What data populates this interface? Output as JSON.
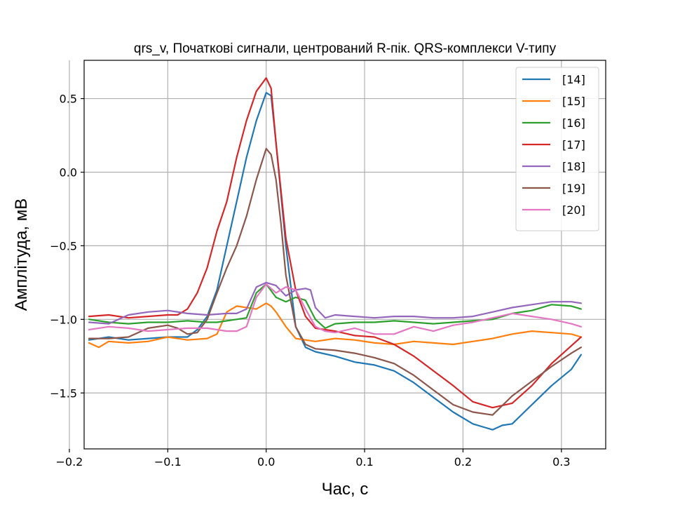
{
  "chart_data": {
    "type": "line",
    "title": "qrs_v, Початкові сигнали, центрований R-пік. QRS-комплекси V-типу",
    "xlabel": "Час, с",
    "ylabel": "Амплітуда, мВ",
    "xlim": [
      -0.185,
      0.345
    ],
    "ylim": [
      -1.88,
      0.76
    ],
    "xticks": [
      -0.2,
      -0.1,
      0.0,
      0.1,
      0.2,
      0.3
    ],
    "xtick_labels": [
      "−0.2",
      "−0.1",
      "0.0",
      "0.1",
      "0.2",
      "0.3"
    ],
    "yticks": [
      0.5,
      0.0,
      -0.5,
      -1.0,
      -1.5
    ],
    "ytick_labels": [
      "0.5",
      "0.0",
      "−0.5",
      "−1.0",
      "−1.5"
    ],
    "grid": true,
    "legend_position": "top-right",
    "series": [
      {
        "name": "[14]",
        "color": "#1f77b4",
        "x": [
          -0.18,
          -0.16,
          -0.14,
          -0.12,
          -0.1,
          -0.08,
          -0.07,
          -0.06,
          -0.05,
          -0.04,
          -0.03,
          -0.02,
          -0.01,
          0.0,
          0.005,
          0.01,
          0.02,
          0.03,
          0.04,
          0.05,
          0.07,
          0.09,
          0.11,
          0.13,
          0.15,
          0.17,
          0.19,
          0.21,
          0.22,
          0.23,
          0.24,
          0.25,
          0.27,
          0.29,
          0.31,
          0.32
        ],
        "y": [
          -1.14,
          -1.12,
          -1.14,
          -1.13,
          -1.12,
          -1.12,
          -1.07,
          -0.98,
          -0.8,
          -0.5,
          -0.2,
          0.1,
          0.35,
          0.54,
          0.52,
          0.2,
          -0.5,
          -1.05,
          -1.19,
          -1.22,
          -1.25,
          -1.29,
          -1.31,
          -1.35,
          -1.43,
          -1.53,
          -1.63,
          -1.71,
          -1.73,
          -1.75,
          -1.72,
          -1.71,
          -1.58,
          -1.45,
          -1.34,
          -1.24
        ]
      },
      {
        "name": "[15]",
        "color": "#ff7f0e",
        "x": [
          -0.18,
          -0.17,
          -0.16,
          -0.14,
          -0.12,
          -0.1,
          -0.08,
          -0.06,
          -0.05,
          -0.04,
          -0.03,
          -0.02,
          -0.01,
          0.0,
          0.005,
          0.01,
          0.02,
          0.03,
          0.05,
          0.07,
          0.09,
          0.11,
          0.13,
          0.15,
          0.17,
          0.19,
          0.21,
          0.23,
          0.25,
          0.27,
          0.29,
          0.31,
          0.32
        ],
        "y": [
          -1.16,
          -1.19,
          -1.15,
          -1.16,
          -1.15,
          -1.12,
          -1.14,
          -1.13,
          -1.1,
          -0.95,
          -0.91,
          -0.92,
          -0.93,
          -0.89,
          -0.91,
          -0.95,
          -1.05,
          -1.13,
          -1.15,
          -1.13,
          -1.14,
          -1.16,
          -1.17,
          -1.15,
          -1.16,
          -1.17,
          -1.15,
          -1.13,
          -1.1,
          -1.08,
          -1.09,
          -1.1,
          -1.12
        ]
      },
      {
        "name": "[16]",
        "color": "#2ca02c",
        "x": [
          -0.18,
          -0.16,
          -0.14,
          -0.12,
          -0.1,
          -0.08,
          -0.06,
          -0.05,
          -0.04,
          -0.03,
          -0.02,
          -0.01,
          0.0,
          0.01,
          0.02,
          0.03,
          0.04,
          0.05,
          0.06,
          0.07,
          0.09,
          0.11,
          0.13,
          0.15,
          0.17,
          0.19,
          0.21,
          0.23,
          0.25,
          0.27,
          0.29,
          0.31,
          0.32
        ],
        "y": [
          -1.0,
          -1.02,
          -1.03,
          -1.02,
          -1.02,
          -1.01,
          -1.02,
          -1.02,
          -1.01,
          -1.0,
          -0.99,
          -0.82,
          -0.76,
          -0.85,
          -0.88,
          -0.85,
          -0.87,
          -1.0,
          -1.06,
          -1.03,
          -1.02,
          -1.02,
          -1.01,
          -1.02,
          -1.03,
          -1.02,
          -1.01,
          -1.0,
          -0.96,
          -0.94,
          -0.9,
          -0.91,
          -0.93
        ]
      },
      {
        "name": "[17]",
        "color": "#d62728",
        "x": [
          -0.18,
          -0.16,
          -0.14,
          -0.12,
          -0.1,
          -0.09,
          -0.08,
          -0.07,
          -0.06,
          -0.05,
          -0.04,
          -0.03,
          -0.02,
          -0.01,
          0.0,
          0.005,
          0.01,
          0.02,
          0.03,
          0.04,
          0.05,
          0.07,
          0.09,
          0.11,
          0.13,
          0.15,
          0.17,
          0.19,
          0.21,
          0.23,
          0.25,
          0.27,
          0.29,
          0.31,
          0.32
        ],
        "y": [
          -0.98,
          -0.97,
          -0.99,
          -0.98,
          -0.97,
          -0.97,
          -0.93,
          -0.82,
          -0.65,
          -0.4,
          -0.2,
          0.1,
          0.35,
          0.55,
          0.64,
          0.57,
          0.2,
          -0.45,
          -0.8,
          -0.98,
          -1.06,
          -1.08,
          -1.11,
          -1.12,
          -1.17,
          -1.25,
          -1.35,
          -1.45,
          -1.56,
          -1.6,
          -1.57,
          -1.45,
          -1.3,
          -1.18,
          -1.12
        ]
      },
      {
        "name": "[18]",
        "color": "#9467bd",
        "x": [
          -0.18,
          -0.16,
          -0.14,
          -0.12,
          -0.1,
          -0.08,
          -0.06,
          -0.04,
          -0.03,
          -0.02,
          -0.01,
          0.0,
          0.01,
          0.02,
          0.03,
          0.04,
          0.045,
          0.05,
          0.06,
          0.07,
          0.09,
          0.11,
          0.13,
          0.15,
          0.17,
          0.19,
          0.21,
          0.23,
          0.25,
          0.27,
          0.29,
          0.31,
          0.32
        ],
        "y": [
          -1.02,
          -1.03,
          -0.97,
          -0.95,
          -0.94,
          -0.96,
          -0.97,
          -0.96,
          -0.96,
          -0.93,
          -0.78,
          -0.75,
          -0.77,
          -0.84,
          -0.8,
          -0.79,
          -0.8,
          -0.92,
          -0.99,
          -0.97,
          -0.98,
          -0.99,
          -0.98,
          -0.98,
          -0.99,
          -0.99,
          -0.98,
          -0.95,
          -0.92,
          -0.9,
          -0.88,
          -0.88,
          -0.89
        ]
      },
      {
        "name": "[19]",
        "color": "#8c564b",
        "x": [
          -0.18,
          -0.16,
          -0.14,
          -0.12,
          -0.1,
          -0.09,
          -0.08,
          -0.07,
          -0.06,
          -0.05,
          -0.04,
          -0.03,
          -0.02,
          -0.01,
          0.0,
          0.005,
          0.01,
          0.015,
          0.02,
          0.03,
          0.04,
          0.05,
          0.07,
          0.09,
          0.11,
          0.13,
          0.15,
          0.17,
          0.19,
          0.21,
          0.23,
          0.25,
          0.27,
          0.29,
          0.31,
          0.32
        ],
        "y": [
          -1.13,
          -1.13,
          -1.12,
          -1.06,
          -1.04,
          -1.06,
          -1.1,
          -1.09,
          -1.0,
          -0.82,
          -0.65,
          -0.5,
          -0.3,
          -0.05,
          0.16,
          0.12,
          -0.05,
          -0.35,
          -0.7,
          -1.05,
          -1.17,
          -1.2,
          -1.21,
          -1.23,
          -1.26,
          -1.3,
          -1.38,
          -1.48,
          -1.58,
          -1.63,
          -1.65,
          -1.52,
          -1.42,
          -1.32,
          -1.23,
          -1.19
        ]
      },
      {
        "name": "[20]",
        "color": "#e377c2",
        "x": [
          -0.18,
          -0.16,
          -0.14,
          -0.12,
          -0.1,
          -0.08,
          -0.06,
          -0.04,
          -0.03,
          -0.02,
          -0.01,
          0.0,
          0.01,
          0.02,
          0.03,
          0.04,
          0.05,
          0.06,
          0.07,
          0.09,
          0.11,
          0.13,
          0.15,
          0.17,
          0.19,
          0.21,
          0.23,
          0.25,
          0.27,
          0.29,
          0.31,
          0.32
        ],
        "y": [
          -1.07,
          -1.05,
          -1.06,
          -1.08,
          -1.07,
          -1.06,
          -1.06,
          -1.08,
          -1.08,
          -1.05,
          -0.85,
          -0.76,
          -0.82,
          -0.78,
          -0.8,
          -0.93,
          -1.05,
          -1.08,
          -1.09,
          -1.06,
          -1.1,
          -1.1,
          -1.05,
          -1.08,
          -1.04,
          -1.02,
          -0.99,
          -0.96,
          -0.98,
          -1.0,
          -1.03,
          -1.05
        ]
      }
    ]
  }
}
